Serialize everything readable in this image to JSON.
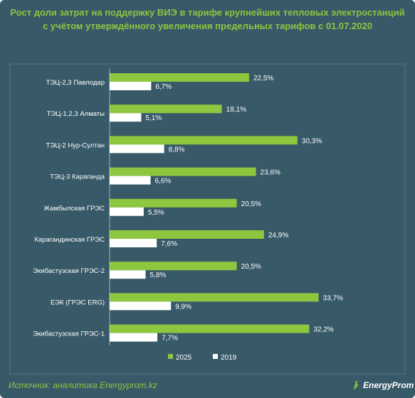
{
  "title_lines": [
    "Рост доли затрат на поддержку ВИЭ в тарифе крупнейших тепловых электростанций",
    "с учётом утверждённого увеличения предельных тарифов с 01.07.2020"
  ],
  "source": "Источник: аналитика Energyprom.kz",
  "logo_text": "EnergyProm",
  "colors": {
    "background": "#375968",
    "accent": "#8dc63f",
    "series_2025": "#8dc63f",
    "series_2019": "#ffffff",
    "text": "#ffffff"
  },
  "chart_data": {
    "type": "bar",
    "orientation": "horizontal",
    "title": "Рост доли затрат на поддержку ВИЭ в тарифе крупнейших тепловых электростанций с учётом утверждённого увеличения предельных тарифов с 01.07.2020",
    "categories": [
      "ТЭЦ-2,3 Павлодар",
      "ТЭЦ-1,2,3 Алматы",
      "ТЭЦ-2 Нур-Султан",
      "ТЭЦ-3 Караганда",
      "Жамбылская ГРЭС",
      "Карагандинская ГРЭС",
      "Экибастузская ГРЭС-2",
      "ЕЭК (ГРЭС ERG)",
      "Экибастузская ГРЭС-1"
    ],
    "series": [
      {
        "name": "2025",
        "values": [
          22.5,
          18.1,
          30.3,
          23.6,
          20.5,
          24.9,
          20.5,
          33.7,
          32.2
        ],
        "labels": [
          "22,5%",
          "18,1%",
          "30,3%",
          "23,6%",
          "20,5%",
          "24,9%",
          "20,5%",
          "33,7%",
          "32,2%"
        ],
        "color": "#8dc63f"
      },
      {
        "name": "2019",
        "values": [
          6.7,
          5.1,
          8.8,
          6.6,
          5.5,
          7.6,
          5.8,
          9.9,
          7.7
        ],
        "labels": [
          "6,7%",
          "5,1%",
          "8,8%",
          "6,6%",
          "5,5%",
          "7,6%",
          "5,8%",
          "9,9%",
          "7,7%"
        ],
        "color": "#ffffff"
      }
    ],
    "xlim": [
      0,
      40
    ],
    "grid": false,
    "legend_position": "bottom"
  }
}
